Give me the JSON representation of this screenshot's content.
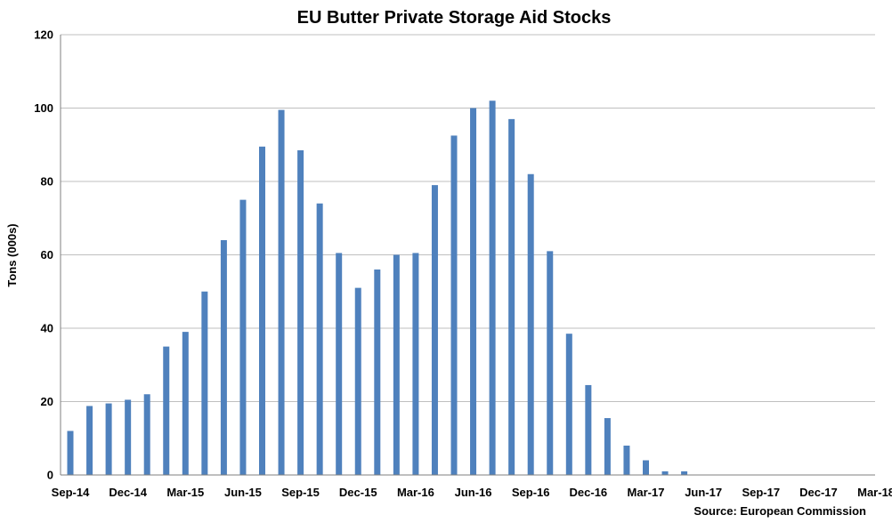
{
  "chart_data": {
    "type": "bar",
    "title": "EU Butter Private Storage Aid Stocks",
    "ylabel": "Tons (000s)",
    "xlabel": "",
    "source": "Source: European Commission",
    "ylim": [
      0,
      120
    ],
    "yticks": [
      0,
      20,
      40,
      60,
      80,
      100,
      120
    ],
    "grid": true,
    "legend": "none",
    "bar_color": "#4F81BD",
    "x_tick_labels": [
      "Sep-14",
      "Dec-14",
      "Mar-15",
      "Jun-15",
      "Sep-15",
      "Dec-15",
      "Mar-16",
      "Jun-16",
      "Sep-16",
      "Dec-16",
      "Mar-17",
      "Jun-17",
      "Sep-17",
      "Dec-17",
      "Mar-18"
    ],
    "categories": [
      "Sep-14",
      "Oct-14",
      "Nov-14",
      "Dec-14",
      "Jan-15",
      "Feb-15",
      "Mar-15",
      "Apr-15",
      "May-15",
      "Jun-15",
      "Jul-15",
      "Aug-15",
      "Sep-15",
      "Oct-15",
      "Nov-15",
      "Dec-15",
      "Jan-16",
      "Feb-16",
      "Mar-16",
      "Apr-16",
      "May-16",
      "Jun-16",
      "Jul-16",
      "Aug-16",
      "Sep-16",
      "Oct-16",
      "Nov-16",
      "Dec-16",
      "Jan-17",
      "Feb-17",
      "Mar-17",
      "Apr-17",
      "May-17",
      "Jun-17",
      "Jul-17",
      "Aug-17",
      "Sep-17",
      "Oct-17",
      "Nov-17",
      "Dec-17",
      "Jan-18",
      "Feb-18",
      "Mar-18"
    ],
    "values": [
      12,
      18.8,
      19.5,
      20.5,
      22,
      35,
      39,
      50,
      64,
      75,
      89.5,
      99.5,
      88.5,
      74,
      60.5,
      51,
      56,
      60,
      60.5,
      79,
      92.5,
      100,
      102,
      97,
      82,
      61,
      38.5,
      24.5,
      15.5,
      8,
      4,
      1,
      1,
      0,
      0,
      0,
      0,
      0,
      0,
      0,
      0,
      0,
      0
    ]
  }
}
